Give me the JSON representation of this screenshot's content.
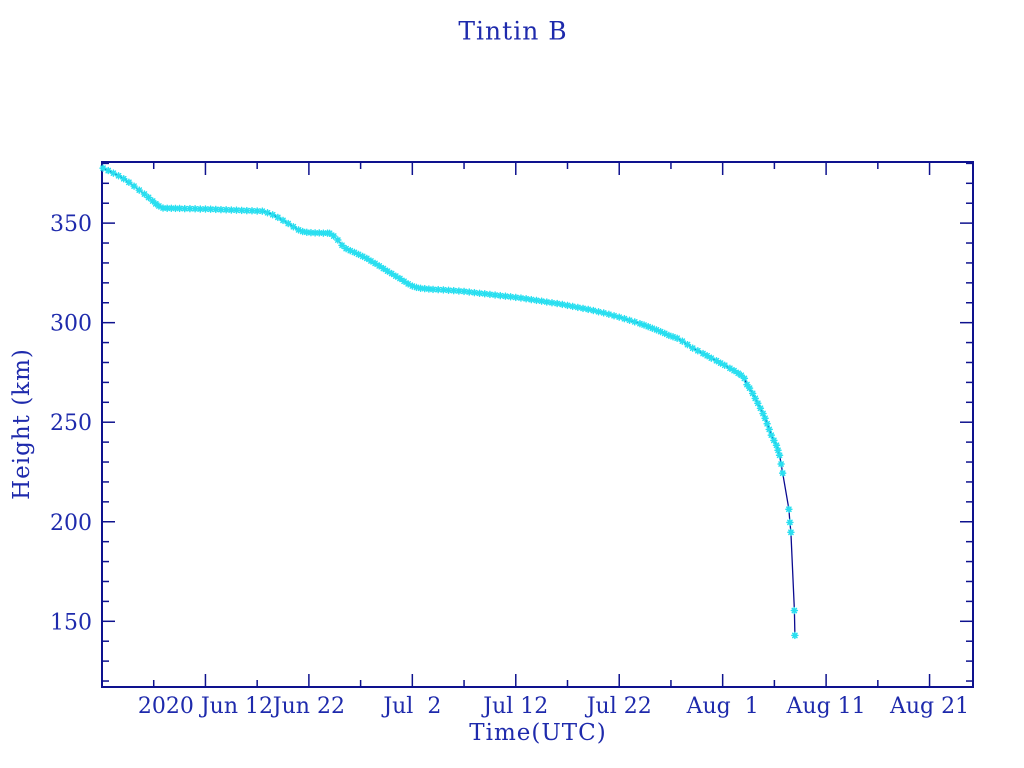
{
  "window": {
    "background": "#ffffff"
  },
  "colors": {
    "text": "#1e2aac",
    "axis": "#0e128e",
    "line": "#0a0a90",
    "marker": "#29dff0"
  },
  "chart_data": {
    "type": "line",
    "title": "Tintin B",
    "xlabel": "Time(UTC)",
    "ylabel": "Height (km)",
    "x_unit": "day-of-2020 counted from Jun 1 = 1 (Jul 1 = 31, Aug 1 = 62)",
    "xlim": [
      2,
      86.2
    ],
    "ylim": [
      117,
      380.7
    ],
    "grid": false,
    "legend": false,
    "marker_style": "cyan-asterisk",
    "x_major_ticks": [
      {
        "day": 12,
        "label": "2020 Jun 12"
      },
      {
        "day": 22,
        "label": "Jun 22"
      },
      {
        "day": 32,
        "label": "Jul  2"
      },
      {
        "day": 42,
        "label": "Jul 12"
      },
      {
        "day": 52,
        "label": "Jul 22"
      },
      {
        "day": 62,
        "label": "Aug  1"
      },
      {
        "day": 72,
        "label": "Aug 11"
      },
      {
        "day": 82,
        "label": "Aug 21"
      }
    ],
    "x_minor_tick_days": [
      7,
      17,
      27,
      37,
      47,
      57,
      67,
      77
    ],
    "y_major_ticks": [
      {
        "km": 150,
        "label": "150"
      },
      {
        "km": 200,
        "label": "200"
      },
      {
        "km": 250,
        "label": "250"
      },
      {
        "km": 300,
        "label": "300"
      },
      {
        "km": 350,
        "label": "350"
      }
    ],
    "y_minor_step_km": 10,
    "points": [
      [
        2.1,
        377.6
      ],
      [
        2.6,
        376.4
      ],
      [
        3.1,
        375.1
      ],
      [
        3.6,
        373.8
      ],
      [
        4.1,
        372.3
      ],
      [
        4.6,
        370.5
      ],
      [
        5.1,
        368.6
      ],
      [
        5.6,
        366.6
      ],
      [
        6.1,
        364.6
      ],
      [
        6.5,
        362.9
      ],
      [
        6.9,
        361.1
      ],
      [
        7.2,
        359.7
      ],
      [
        7.5,
        358.6
      ],
      [
        7.9,
        357.6
      ],
      [
        8.3,
        357.5
      ],
      [
        8.7,
        357.5
      ],
      [
        9.1,
        357.4
      ],
      [
        9.5,
        357.4
      ],
      [
        10,
        357.3
      ],
      [
        10.5,
        357.3
      ],
      [
        11,
        357.2
      ],
      [
        11.5,
        357.1
      ],
      [
        12,
        357.1
      ],
      [
        12.5,
        357
      ],
      [
        13,
        356.9
      ],
      [
        13.5,
        356.8
      ],
      [
        14,
        356.7
      ],
      [
        14.5,
        356.6
      ],
      [
        15,
        356.5
      ],
      [
        15.5,
        356.4
      ],
      [
        16,
        356.3
      ],
      [
        16.5,
        356.2
      ],
      [
        17,
        356.1
      ],
      [
        17.5,
        356
      ],
      [
        18,
        355.2
      ],
      [
        18.5,
        354.2
      ],
      [
        19,
        352.9
      ],
      [
        19.5,
        351.4
      ],
      [
        20,
        349.8
      ],
      [
        20.5,
        348.2
      ],
      [
        21,
        346.6
      ],
      [
        21.4,
        345.8
      ],
      [
        21.8,
        345.4
      ],
      [
        22.2,
        345.2
      ],
      [
        22.6,
        345.1
      ],
      [
        23,
        345.1
      ],
      [
        23.4,
        345
      ],
      [
        23.8,
        345
      ],
      [
        24,
        344.9
      ],
      [
        24.4,
        343.5
      ],
      [
        24.8,
        341.5
      ],
      [
        25.2,
        338.9
      ],
      [
        25.6,
        337.2
      ],
      [
        26,
        336.2
      ],
      [
        26.4,
        335.3
      ],
      [
        26.8,
        334.3
      ],
      [
        27.2,
        333.3
      ],
      [
        27.6,
        332.3
      ],
      [
        28,
        331
      ],
      [
        28.4,
        329.8
      ],
      [
        28.8,
        328.5
      ],
      [
        29.2,
        327.2
      ],
      [
        29.6,
        325.9
      ],
      [
        30,
        324.7
      ],
      [
        30.4,
        323.4
      ],
      [
        30.8,
        322.2
      ],
      [
        31.2,
        320.8
      ],
      [
        31.6,
        319.5
      ],
      [
        32,
        318.4
      ],
      [
        32.4,
        317.7
      ],
      [
        32.8,
        317.3
      ],
      [
        33.2,
        317.1
      ],
      [
        33.6,
        316.9
      ],
      [
        34,
        316.7
      ],
      [
        34.5,
        316.6
      ],
      [
        35,
        316.5
      ],
      [
        35.5,
        316.3
      ],
      [
        36,
        316.1
      ],
      [
        36.5,
        315.9
      ],
      [
        37,
        315.7
      ],
      [
        37.5,
        315.4
      ],
      [
        38,
        315.1
      ],
      [
        38.5,
        314.8
      ],
      [
        39,
        314.5
      ],
      [
        39.5,
        314.2
      ],
      [
        40,
        313.9
      ],
      [
        40.5,
        313.6
      ],
      [
        41,
        313.3
      ],
      [
        41.5,
        313
      ],
      [
        42,
        312.7
      ],
      [
        42.5,
        312.4
      ],
      [
        43,
        312
      ],
      [
        43.5,
        311.6
      ],
      [
        44,
        311.2
      ],
      [
        44.5,
        310.8
      ],
      [
        45,
        310.4
      ],
      [
        45.5,
        310
      ],
      [
        46,
        309.6
      ],
      [
        46.5,
        309.2
      ],
      [
        47,
        308.7
      ],
      [
        47.5,
        308.2
      ],
      [
        48,
        307.7
      ],
      [
        48.5,
        307.2
      ],
      [
        49,
        306.7
      ],
      [
        49.5,
        306.1
      ],
      [
        50,
        305.5
      ],
      [
        50.5,
        304.9
      ],
      [
        51,
        304.2
      ],
      [
        51.5,
        303.5
      ],
      [
        52,
        302.8
      ],
      [
        52.5,
        302
      ],
      [
        53,
        301.2
      ],
      [
        53.5,
        300.4
      ],
      [
        54,
        299.5
      ],
      [
        54.4,
        298.8
      ],
      [
        54.8,
        298
      ],
      [
        55.2,
        297.2
      ],
      [
        55.6,
        296.4
      ],
      [
        56,
        295.5
      ],
      [
        56.4,
        294.6
      ],
      [
        56.8,
        293.6
      ],
      [
        57.2,
        292.9
      ],
      [
        57.6,
        292.2
      ],
      [
        58.1,
        290.7
      ],
      [
        58.6,
        289
      ],
      [
        59.1,
        287.2
      ],
      [
        59.6,
        285.9
      ],
      [
        60.1,
        284.5
      ],
      [
        60.5,
        283.4
      ],
      [
        60.9,
        282.2
      ],
      [
        61.4,
        280.9
      ],
      [
        61.8,
        279.7
      ],
      [
        62.2,
        278.6
      ],
      [
        62.7,
        277.1
      ],
      [
        63.1,
        275.9
      ],
      [
        63.5,
        274.6
      ],
      [
        63.8,
        273.6
      ],
      [
        64.1,
        272
      ],
      [
        64.35,
        268.9
      ],
      [
        64.6,
        267.1
      ],
      [
        64.9,
        264.5
      ],
      [
        65.15,
        262
      ],
      [
        65.4,
        259.5
      ],
      [
        65.65,
        257
      ],
      [
        65.9,
        254.4
      ],
      [
        66.1,
        252
      ],
      [
        66.3,
        249.2
      ],
      [
        66.5,
        246.4
      ],
      [
        66.7,
        243.5
      ],
      [
        66.95,
        240.9
      ],
      [
        67.2,
        238.4
      ],
      [
        67.35,
        235.9
      ],
      [
        67.5,
        233.4
      ],
      [
        67.65,
        229
      ],
      [
        67.8,
        224.4
      ],
      [
        68.4,
        206.3
      ],
      [
        68.5,
        199.7
      ],
      [
        68.6,
        194.7
      ],
      [
        68.93,
        155.4
      ],
      [
        68.98,
        142.9
      ]
    ]
  }
}
